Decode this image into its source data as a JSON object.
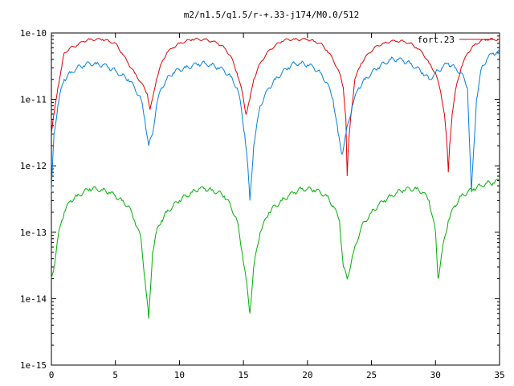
{
  "chart_data": {
    "type": "line",
    "title": "m2/n1.5/q1.5/r-+.33-j174/M0.0/512",
    "xlabel": "",
    "ylabel": "",
    "xlim": [
      0,
      35
    ],
    "ylim": [
      1e-15,
      1e-10
    ],
    "y_scale": "log",
    "grid": false,
    "legend_position": "top-right",
    "x_ticks": [
      0,
      5,
      10,
      15,
      20,
      25,
      30,
      35
    ],
    "x_tick_labels": [
      "0",
      "5",
      "10",
      "15",
      "20",
      "25",
      "30",
      "35"
    ],
    "y_ticks": [
      1e-15,
      1e-14,
      1e-13,
      1e-12,
      1e-11,
      1e-10
    ],
    "y_tick_labels": [
      "1e-15",
      "1e-14",
      "1e-13",
      "1e-12",
      "1e-11",
      "1e-10"
    ],
    "series": [
      {
        "name": "fort.23",
        "color": "#e00000",
        "x": [
          0,
          0.2,
          0.5,
          0.8,
          1.0,
          1.5,
          2.0,
          2.5,
          3.0,
          3.5,
          4.0,
          4.5,
          5.0,
          5.5,
          6.0,
          6.5,
          7.0,
          7.5,
          7.7,
          7.9,
          8.2,
          8.6,
          9.0,
          9.5,
          10.0,
          10.5,
          11.0,
          11.5,
          12.0,
          12.5,
          13.0,
          13.5,
          14.0,
          14.5,
          14.9,
          15.2,
          15.5,
          15.8,
          16.3,
          17.0,
          17.5,
          18.0,
          18.5,
          19.0,
          19.5,
          20.0,
          20.5,
          21.0,
          21.5,
          22.0,
          22.5,
          22.8,
          23.0,
          23.1,
          23.2,
          23.4,
          23.7,
          24.2,
          24.8,
          25.5,
          26.0,
          26.5,
          27.0,
          27.5,
          28.0,
          28.5,
          29.0,
          29.5,
          30.0,
          30.4,
          30.7,
          30.9,
          31.0,
          31.1,
          31.3,
          31.6,
          32.0,
          32.5,
          33.0,
          33.5,
          34.0,
          34.5,
          35.0
        ],
        "values": [
          3e-12,
          6e-12,
          1.5e-11,
          3e-11,
          5e-11,
          6e-11,
          6.5e-11,
          7.5e-11,
          8e-11,
          8e-11,
          8e-11,
          7.5e-11,
          7e-11,
          5e-11,
          3.5e-11,
          2.5e-11,
          1.8e-11,
          1.2e-11,
          7e-12,
          1e-11,
          2e-11,
          3.5e-11,
          5e-11,
          6e-11,
          7e-11,
          7.5e-11,
          8e-11,
          8e-11,
          8e-11,
          7.5e-11,
          7e-11,
          6e-11,
          4.5e-11,
          2.5e-11,
          1.3e-11,
          6e-12,
          1e-11,
          2e-11,
          3.5e-11,
          5.5e-11,
          6.5e-11,
          7.5e-11,
          8e-11,
          8e-11,
          8e-11,
          8e-11,
          7.5e-11,
          7e-11,
          5.5e-11,
          4e-11,
          2.5e-11,
          1.5e-11,
          5e-12,
          7e-13,
          2e-12,
          6e-12,
          2e-11,
          3.5e-11,
          5e-11,
          6.5e-11,
          7e-11,
          7.5e-11,
          7.5e-11,
          7.5e-11,
          7e-11,
          6e-11,
          5e-11,
          3.5e-11,
          2.5e-11,
          1.3e-11,
          6e-12,
          2e-12,
          8e-13,
          2e-12,
          6e-12,
          1.5e-11,
          3e-11,
          5e-11,
          6.5e-11,
          7.5e-11,
          8e-11,
          8e-11,
          8e-11
        ]
      },
      {
        "name": "",
        "color": "#0080e0",
        "x": [
          0,
          0.2,
          0.5,
          0.8,
          1.0,
          1.5,
          2.0,
          2.5,
          3.0,
          3.5,
          4.0,
          4.5,
          5.0,
          5.5,
          6.0,
          6.5,
          7.0,
          7.3,
          7.6,
          7.9,
          8.2,
          8.6,
          9.0,
          9.5,
          10.0,
          10.5,
          11.0,
          11.5,
          12.0,
          12.5,
          13.0,
          13.5,
          14.0,
          14.5,
          14.8,
          15.1,
          15.3,
          15.5,
          15.8,
          16.3,
          17.0,
          17.5,
          18.0,
          18.5,
          19.0,
          19.5,
          20.0,
          20.5,
          21.0,
          21.5,
          22.0,
          22.4,
          22.7,
          23.0,
          23.5,
          24.0,
          24.5,
          25.0,
          25.5,
          26.0,
          26.5,
          27.0,
          27.5,
          28.0,
          28.5,
          29.0,
          29.5,
          30.0,
          30.5,
          31.0,
          31.5,
          32.0,
          32.5,
          32.8,
          33.2,
          33.6,
          34.0,
          34.5,
          35.0
        ],
        "values": [
          4e-13,
          3e-12,
          8e-12,
          1.5e-11,
          2e-11,
          2.5e-11,
          3e-11,
          3.2e-11,
          3.5e-11,
          3.4e-11,
          3.3e-11,
          3e-11,
          2.7e-11,
          2.3e-11,
          2e-11,
          1.5e-11,
          1e-11,
          5e-12,
          2e-12,
          3e-12,
          8e-12,
          1.5e-11,
          2e-11,
          2.5e-11,
          2.8e-11,
          3e-11,
          3.2e-11,
          3.4e-11,
          3.5e-11,
          3.3e-11,
          3e-11,
          2.7e-11,
          2.2e-11,
          1.5e-11,
          8e-12,
          3e-12,
          1.2e-12,
          3e-13,
          2e-12,
          8e-12,
          1.5e-11,
          2e-11,
          2.5e-11,
          3e-11,
          3.5e-11,
          3.5e-11,
          3.3e-11,
          3e-11,
          2.5e-11,
          1.8e-11,
          1e-11,
          3e-12,
          1.5e-12,
          3e-12,
          8e-12,
          1.5e-11,
          2e-11,
          2.5e-11,
          3e-11,
          3.5e-11,
          4e-11,
          4e-11,
          3.8e-11,
          3.5e-11,
          3e-11,
          2.5e-11,
          2e-11,
          2.5e-11,
          3e-11,
          3.5e-11,
          3e-11,
          2.5e-11,
          1.5e-11,
          4e-13,
          1e-11,
          3e-11,
          4e-11,
          5e-11,
          5e-11
        ]
      },
      {
        "name": "",
        "color": "#00b000",
        "x": [
          0,
          0.2,
          0.5,
          0.8,
          1.0,
          1.5,
          2.0,
          2.5,
          3.0,
          3.5,
          4.0,
          4.5,
          5.0,
          5.5,
          6.0,
          6.5,
          7.0,
          7.3,
          7.6,
          7.9,
          8.2,
          8.6,
          9.0,
          9.5,
          10.0,
          10.5,
          11.0,
          11.5,
          12.0,
          12.5,
          13.0,
          13.5,
          14.0,
          14.5,
          14.9,
          15.2,
          15.5,
          15.8,
          16.3,
          17.0,
          17.5,
          18.0,
          18.5,
          19.0,
          19.5,
          20.0,
          20.5,
          21.0,
          21.5,
          22.0,
          22.5,
          22.8,
          23.1,
          23.6,
          24.2,
          25.0,
          25.5,
          26.0,
          26.5,
          27.0,
          27.5,
          28.0,
          28.5,
          29.0,
          29.5,
          30.0,
          30.2,
          30.5,
          31.0,
          31.5,
          32.0,
          32.5,
          33.0,
          33.5,
          34.0,
          34.5,
          35.0
        ],
        "values": [
          2e-14,
          3e-14,
          8e-14,
          1.5e-13,
          2e-13,
          3e-13,
          3.5e-13,
          4e-13,
          4.5e-13,
          4.5e-13,
          4.3e-13,
          4e-13,
          3.5e-13,
          3e-13,
          2.5e-13,
          1.5e-13,
          8e-14,
          2e-14,
          5e-15,
          5e-14,
          1e-13,
          1.5e-13,
          2e-13,
          2.5e-13,
          3e-13,
          3.5e-13,
          4e-13,
          4.5e-13,
          4.5e-13,
          4.3e-13,
          4e-13,
          3.5e-13,
          2.5e-13,
          1.5e-13,
          5e-14,
          2e-14,
          6e-15,
          3e-14,
          1e-13,
          2e-13,
          2.5e-13,
          3e-13,
          3.5e-13,
          4e-13,
          4.5e-13,
          4.5e-13,
          4.3e-13,
          4e-13,
          3.5e-13,
          2.5e-13,
          1.5e-13,
          3e-14,
          2e-14,
          5e-14,
          1.2e-13,
          2e-13,
          2.5e-13,
          3e-13,
          3.5e-13,
          4e-13,
          4.3e-13,
          4.5e-13,
          4.5e-13,
          4e-13,
          3e-13,
          1e-13,
          2e-14,
          5e-14,
          1.5e-13,
          2.5e-13,
          3.5e-13,
          4e-13,
          4.5e-13,
          5e-13,
          5.5e-13,
          5.5e-13,
          6e-13
        ]
      }
    ]
  }
}
